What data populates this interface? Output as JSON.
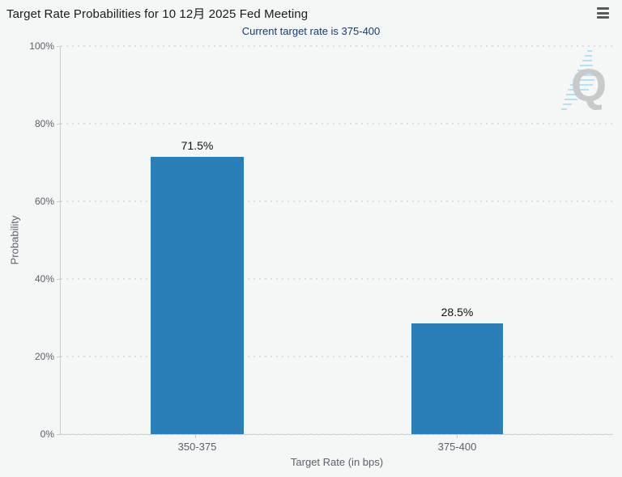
{
  "header": {
    "title": "Target Rate Probabilities for 10 12月 2025 Fed Meeting",
    "subtitle": "Current target rate is 375-400",
    "menu_icon": "hamburger-menu-icon"
  },
  "watermark": {
    "letter": "Q"
  },
  "chart_data": {
    "type": "bar",
    "title": "Target Rate Probabilities for 10 12月 2025 Fed Meeting",
    "subtitle": "Current target rate is 375-400",
    "categories": [
      "350-375",
      "375-400"
    ],
    "values": [
      71.5,
      28.5
    ],
    "value_labels": [
      "71.5%",
      "28.5%"
    ],
    "xlabel": "Target Rate (in bps)",
    "ylabel": "Probability",
    "ylim": [
      0,
      100
    ],
    "ytick_labels": [
      "100%",
      "80%",
      "60%",
      "40%",
      "20%",
      "0%"
    ],
    "grid": true,
    "legend": false,
    "bar_color": "#2a7fb9",
    "colors": {
      "background": "#f5f6f6",
      "bar": "#2a7fb9",
      "title_text": "#1b1b1b",
      "subtitle_text": "#1b3c6d",
      "axis_line": "#c9cbcc",
      "gridline": "#dcdddd",
      "axis_text": "#5a626b",
      "value_label_text": "#111111",
      "watermark_gray": "#c8c9cb",
      "watermark_blue": "#b5e1f3"
    }
  }
}
